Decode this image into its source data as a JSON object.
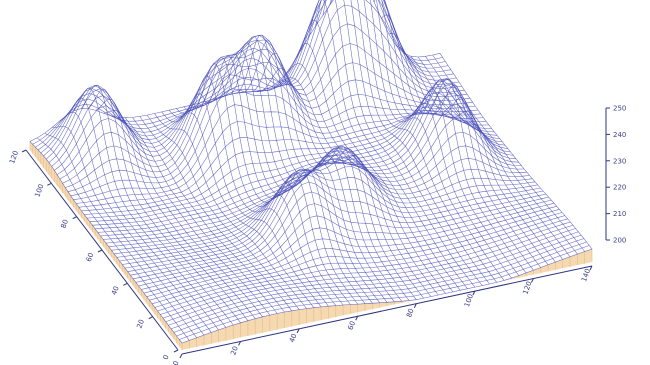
{
  "chart_data": {
    "type": "surface",
    "title": "",
    "xlabel": "",
    "ylabel": "",
    "zlabel": "",
    "grid": false,
    "legend": "none",
    "colors": {
      "mesh": "#4a4fb8",
      "wall": "#f3d2a2",
      "wall_line": "#e8b98a",
      "axis": "#2d3480"
    },
    "zlim": [
      200,
      250
    ],
    "z_ticks": [
      {
        "value": 200,
        "label": "200"
      },
      {
        "value": 210,
        "label": "210"
      },
      {
        "value": 220,
        "label": "220"
      },
      {
        "value": 230,
        "label": "230"
      },
      {
        "value": 240,
        "label": "240"
      },
      {
        "value": 250,
        "label": "250"
      }
    ],
    "front_axis_ticks": [
      "0",
      "20",
      "40",
      "60",
      "80",
      "100",
      "120",
      "140"
    ],
    "left_axis_ticks": [
      "0",
      "20",
      "40",
      "60",
      "80",
      "100",
      "120"
    ],
    "peaks": [
      {
        "u": 0.12,
        "v": 0.88,
        "height": 236
      },
      {
        "u": 0.38,
        "v": 0.78,
        "height": 243
      },
      {
        "u": 0.5,
        "v": 0.82,
        "height": 245
      },
      {
        "u": 0.7,
        "v": 0.9,
        "height": 250
      },
      {
        "u": 0.8,
        "v": 0.95,
        "height": 252
      },
      {
        "u": 0.42,
        "v": 0.35,
        "height": 232
      },
      {
        "u": 0.55,
        "v": 0.42,
        "height": 230
      },
      {
        "u": 0.85,
        "v": 0.55,
        "height": 238
      }
    ]
  }
}
